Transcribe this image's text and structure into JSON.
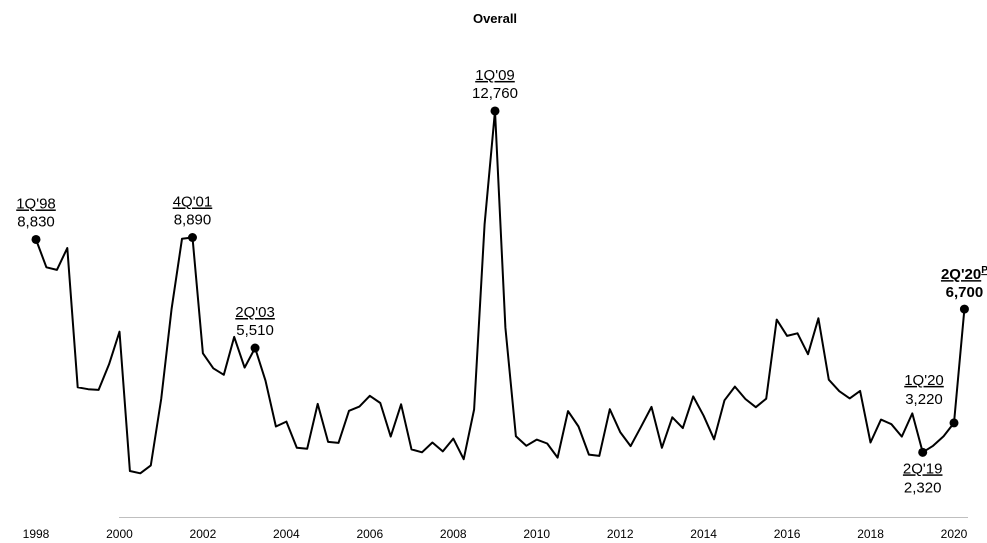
{
  "chart_data": {
    "type": "line",
    "title": "Overall",
    "xlabel": "",
    "ylabel": "",
    "grid": false,
    "legend": "none",
    "xlim": [
      1998,
      2020.5
    ],
    "ylim": [
      0,
      14000
    ],
    "x_ticks": [
      "1998",
      "2000",
      "2002",
      "2004",
      "2006",
      "2008",
      "2010",
      "2012",
      "2014",
      "2016",
      "2018",
      "2020"
    ],
    "x_tick_values": [
      1998,
      2000,
      2002,
      2004,
      2006,
      2008,
      2010,
      2012,
      2014,
      2016,
      2018,
      2020
    ],
    "line_color": "#000000",
    "series": [
      {
        "values": [
          [
            1998.0,
            8830
          ],
          [
            1998.25,
            7980
          ],
          [
            1998.5,
            7900
          ],
          [
            1998.75,
            8570
          ],
          [
            1999.0,
            4310
          ],
          [
            1999.25,
            4250
          ],
          [
            1999.5,
            4230
          ],
          [
            1999.75,
            5010
          ],
          [
            2000.0,
            6010
          ],
          [
            2000.25,
            1750
          ],
          [
            2000.5,
            1680
          ],
          [
            2000.75,
            1920
          ],
          [
            2001.0,
            3950
          ],
          [
            2001.25,
            6710
          ],
          [
            2001.5,
            8850
          ],
          [
            2001.75,
            8890
          ],
          [
            2002.0,
            5350
          ],
          [
            2002.25,
            4890
          ],
          [
            2002.5,
            4690
          ],
          [
            2002.75,
            5850
          ],
          [
            2003.0,
            4910
          ],
          [
            2003.25,
            5510
          ],
          [
            2003.5,
            4510
          ],
          [
            2003.75,
            3110
          ],
          [
            2004.0,
            3260
          ],
          [
            2004.25,
            2460
          ],
          [
            2004.5,
            2430
          ],
          [
            2004.75,
            3800
          ],
          [
            2005.0,
            2640
          ],
          [
            2005.25,
            2610
          ],
          [
            2005.5,
            3590
          ],
          [
            2005.75,
            3720
          ],
          [
            2006.0,
            4050
          ],
          [
            2006.25,
            3830
          ],
          [
            2006.5,
            2800
          ],
          [
            2006.75,
            3790
          ],
          [
            2007.0,
            2410
          ],
          [
            2007.25,
            2320
          ],
          [
            2007.5,
            2620
          ],
          [
            2007.75,
            2350
          ],
          [
            2008.0,
            2740
          ],
          [
            2008.25,
            2110
          ],
          [
            2008.5,
            3630
          ],
          [
            2008.75,
            9300
          ],
          [
            2009.0,
            12760
          ],
          [
            2009.25,
            6130
          ],
          [
            2009.5,
            2810
          ],
          [
            2009.75,
            2520
          ],
          [
            2010.0,
            2710
          ],
          [
            2010.25,
            2590
          ],
          [
            2010.5,
            2160
          ],
          [
            2010.75,
            3580
          ],
          [
            2011.0,
            3110
          ],
          [
            2011.25,
            2250
          ],
          [
            2011.5,
            2210
          ],
          [
            2011.75,
            3640
          ],
          [
            2012.0,
            2940
          ],
          [
            2012.25,
            2510
          ],
          [
            2012.5,
            3100
          ],
          [
            2012.75,
            3710
          ],
          [
            2013.0,
            2460
          ],
          [
            2013.25,
            3390
          ],
          [
            2013.5,
            3060
          ],
          [
            2013.75,
            4030
          ],
          [
            2014.0,
            3440
          ],
          [
            2014.25,
            2720
          ],
          [
            2014.5,
            3910
          ],
          [
            2014.75,
            4330
          ],
          [
            2015.0,
            3950
          ],
          [
            2015.25,
            3700
          ],
          [
            2015.5,
            3960
          ],
          [
            2015.75,
            6380
          ],
          [
            2016.0,
            5880
          ],
          [
            2016.25,
            5960
          ],
          [
            2016.5,
            5320
          ],
          [
            2016.75,
            6420
          ],
          [
            2017.0,
            4540
          ],
          [
            2017.25,
            4190
          ],
          [
            2017.5,
            3970
          ],
          [
            2017.75,
            4200
          ],
          [
            2018.0,
            2620
          ],
          [
            2018.25,
            3320
          ],
          [
            2018.5,
            3180
          ],
          [
            2018.75,
            2800
          ],
          [
            2019.0,
            3510
          ],
          [
            2019.25,
            2320
          ],
          [
            2019.5,
            2520
          ],
          [
            2019.75,
            2810
          ],
          [
            2020.0,
            3220
          ],
          [
            2020.25,
            6700
          ]
        ]
      }
    ],
    "annotations": [
      {
        "period": "1Q'98",
        "value_label": "8,830",
        "x": 1998.0,
        "y": 8830,
        "anchor": "above",
        "bold": false
      },
      {
        "period": "4Q'01",
        "value_label": "8,890",
        "x": 2001.75,
        "y": 8890,
        "anchor": "above",
        "bold": false
      },
      {
        "period": "2Q'03",
        "value_label": "5,510",
        "x": 2003.25,
        "y": 5510,
        "anchor": "above",
        "bold": false
      },
      {
        "period": "1Q'09",
        "value_label": "12,760",
        "x": 2009.0,
        "y": 12760,
        "anchor": "above",
        "bold": false
      },
      {
        "period": "2Q'19",
        "value_label": "2,320",
        "x": 2019.25,
        "y": 2320,
        "anchor": "below",
        "bold": false
      },
      {
        "period": "1Q'20",
        "value_label": "3,220",
        "x": 2020.0,
        "y": 3220,
        "anchor": "above-left",
        "bold": false
      },
      {
        "period": "2Q'20",
        "superscript": "P",
        "value_label": "6,700",
        "x": 2020.25,
        "y": 6700,
        "anchor": "above",
        "bold": true
      }
    ]
  }
}
